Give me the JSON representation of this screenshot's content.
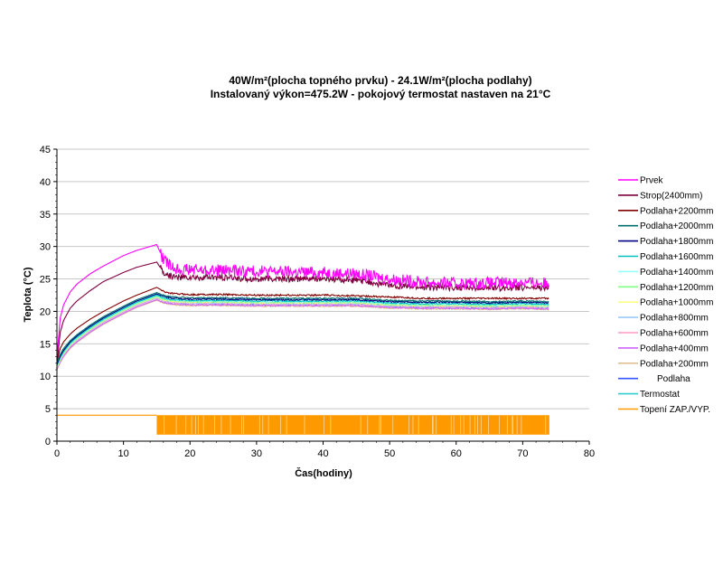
{
  "chart_data": {
    "type": "line",
    "title": "40W/m²(plocha topného prvku) - 24.1W/m²(plocha podlahy)",
    "subtitle": "Instalovaný výkon=475.2W - pokojový termostat nastaven na 21°C",
    "xlabel": "Čas(hodiny)",
    "ylabel": "Teplota (°C)",
    "xlim": [
      0,
      80
    ],
    "ylim": [
      0,
      45
    ],
    "xticks": [
      "0",
      "10",
      "20",
      "30",
      "40",
      "50",
      "60",
      "70",
      "80"
    ],
    "yticks": [
      "0",
      "5",
      "10",
      "15",
      "20",
      "25",
      "30",
      "35",
      "40",
      "45"
    ],
    "grid": "horizontal",
    "legend_position": "right",
    "series": [
      {
        "name": "Prvek",
        "color": "#ff00ff",
        "x": [
          0,
          0.5,
          1,
          2,
          3,
          5,
          7,
          10,
          12,
          15,
          16,
          17,
          18,
          20,
          25,
          30,
          40,
          45,
          50,
          55,
          60,
          65,
          70,
          74
        ],
        "y": [
          13,
          19,
          21,
          23,
          24.2,
          25.8,
          27,
          28.6,
          29.4,
          30.3,
          28,
          27,
          26.6,
          26.4,
          26.3,
          26.2,
          26,
          25.8,
          25,
          24.5,
          24.3,
          24.4,
          24.5,
          24.3
        ],
        "noise": 0.9
      },
      {
        "name": "Strop(2400mm)",
        "color": "#800040",
        "x": [
          0,
          0.5,
          1,
          2,
          3,
          5,
          7,
          10,
          12,
          15,
          16,
          17,
          18,
          20,
          25,
          30,
          40,
          45,
          50,
          55,
          60,
          65,
          70,
          74
        ],
        "y": [
          12,
          16.8,
          18.6,
          20.5,
          21.6,
          23.2,
          24.6,
          26,
          26.8,
          27.6,
          26,
          25.5,
          25.3,
          25.2,
          25.2,
          25,
          25,
          24.8,
          24,
          23.7,
          23.7,
          23.6,
          23.7,
          23.6
        ],
        "noise": 0.5
      },
      {
        "name": "Podlaha+2200mm",
        "color": "#800000",
        "x": [
          0,
          0.5,
          1,
          2,
          3,
          5,
          7,
          10,
          12,
          15,
          16,
          17,
          18,
          20,
          25,
          30,
          40,
          45,
          50,
          55,
          60,
          65,
          70,
          74
        ],
        "y": [
          12.3,
          14.3,
          15.3,
          16.5,
          17.4,
          18.8,
          20,
          21.6,
          22.5,
          23.7,
          23.1,
          22.8,
          22.7,
          22.6,
          22.6,
          22.5,
          22.5,
          22.4,
          22.2,
          22,
          22,
          22,
          22,
          22
        ],
        "noise": 0.12
      },
      {
        "name": "Podlaha+2000mm",
        "color": "#006f6f",
        "x": [
          0,
          0.5,
          1,
          2,
          3,
          5,
          7,
          10,
          12,
          15,
          16,
          17,
          18,
          20,
          25,
          30,
          40,
          45,
          50,
          55,
          60,
          65,
          70,
          74
        ],
        "y": [
          12,
          13.4,
          14.3,
          15.5,
          16.4,
          17.9,
          19.2,
          20.8,
          21.8,
          22.9,
          22.5,
          22.3,
          22.2,
          22.1,
          22.1,
          22,
          22,
          22,
          21.7,
          21.6,
          21.6,
          21.5,
          21.6,
          21.5
        ],
        "noise": 0.1
      },
      {
        "name": "Podlaha+1800mm",
        "color": "#000080",
        "x": [
          0,
          0.5,
          1,
          2,
          3,
          5,
          7,
          10,
          12,
          15,
          16,
          17,
          18,
          20,
          25,
          30,
          40,
          45,
          50,
          55,
          60,
          65,
          70,
          74
        ],
        "y": [
          11.8,
          13.1,
          14,
          15.3,
          16.2,
          17.7,
          19,
          20.6,
          21.6,
          22.7,
          22.3,
          22.1,
          22,
          21.9,
          21.9,
          21.8,
          21.8,
          21.8,
          21.5,
          21.4,
          21.4,
          21.3,
          21.4,
          21.3
        ],
        "noise": 0.1
      },
      {
        "name": "Podlaha+1600mm",
        "color": "#00bfbf",
        "x": [
          0,
          0.5,
          1,
          2,
          3,
          5,
          7,
          10,
          12,
          15,
          16,
          17,
          18,
          20,
          25,
          30,
          40,
          45,
          50,
          55,
          60,
          65,
          70,
          74
        ],
        "y": [
          11.7,
          12.9,
          13.8,
          15.1,
          16,
          17.5,
          18.8,
          20.4,
          21.4,
          22.5,
          22.1,
          21.9,
          21.8,
          21.7,
          21.7,
          21.6,
          21.6,
          21.6,
          21.3,
          21.2,
          21.2,
          21.1,
          21.2,
          21.1
        ],
        "noise": 0.1
      },
      {
        "name": "Podlaha+1400mm",
        "color": "#99ffff",
        "x": [
          0,
          0.5,
          1,
          2,
          3,
          5,
          7,
          10,
          12,
          15,
          16,
          17,
          18,
          20,
          25,
          30,
          40,
          45,
          50,
          55,
          60,
          65,
          70,
          74
        ],
        "y": [
          11.6,
          12.8,
          13.7,
          15,
          15.9,
          17.4,
          18.7,
          20.3,
          21.3,
          22.4,
          22,
          21.8,
          21.7,
          21.6,
          21.6,
          21.5,
          21.5,
          21.5,
          21.2,
          21.1,
          21.1,
          21,
          21.1,
          21
        ],
        "noise": 0.1
      },
      {
        "name": "Podlaha+1200mm",
        "color": "#80ff80",
        "x": [
          0,
          0.5,
          1,
          2,
          3,
          5,
          7,
          10,
          12,
          15,
          16,
          17,
          18,
          20,
          25,
          30,
          40,
          45,
          50,
          55,
          60,
          65,
          70,
          74
        ],
        "y": [
          11.5,
          12.7,
          13.6,
          14.9,
          15.8,
          17.3,
          18.6,
          20.2,
          21.2,
          22.3,
          21.9,
          21.7,
          21.6,
          21.5,
          21.5,
          21.4,
          21.4,
          21.4,
          21.1,
          21,
          21,
          20.9,
          21,
          20.9
        ],
        "noise": 0.1
      },
      {
        "name": "Podlaha+1000mm",
        "color": "#ffff80",
        "x": [
          0,
          0.5,
          1,
          2,
          3,
          5,
          7,
          10,
          12,
          15,
          16,
          17,
          18,
          20,
          25,
          30,
          40,
          45,
          50,
          55,
          60,
          65,
          70,
          74
        ],
        "y": [
          11.4,
          12.6,
          13.5,
          14.8,
          15.7,
          17.2,
          18.5,
          20.1,
          21.1,
          22.2,
          21.8,
          21.6,
          21.5,
          21.4,
          21.4,
          21.3,
          21.3,
          21.3,
          21,
          20.9,
          20.9,
          20.8,
          20.9,
          20.8
        ],
        "noise": 0.1
      },
      {
        "name": "Podlaha+800mm",
        "color": "#99ccff",
        "x": [
          0,
          0.5,
          1,
          2,
          3,
          5,
          7,
          10,
          12,
          15,
          16,
          17,
          18,
          20,
          25,
          30,
          40,
          45,
          50,
          55,
          60,
          65,
          70,
          74
        ],
        "y": [
          11.3,
          12.5,
          13.4,
          14.7,
          15.6,
          17.1,
          18.4,
          20,
          21,
          22.1,
          21.7,
          21.5,
          21.4,
          21.3,
          21.3,
          21.2,
          21.2,
          21.2,
          20.9,
          20.8,
          20.8,
          20.7,
          20.8,
          20.7
        ],
        "noise": 0.1
      },
      {
        "name": "Podlaha+600mm",
        "color": "#ff99cc",
        "x": [
          0,
          0.5,
          1,
          2,
          3,
          5,
          7,
          10,
          12,
          15,
          16,
          17,
          18,
          20,
          25,
          30,
          40,
          45,
          50,
          55,
          60,
          65,
          70,
          74
        ],
        "y": [
          11.2,
          12.4,
          13.3,
          14.6,
          15.5,
          17,
          18.3,
          19.9,
          20.9,
          22,
          21.6,
          21.4,
          21.3,
          21.2,
          21.2,
          21.1,
          21.1,
          21.1,
          20.8,
          20.7,
          20.7,
          20.6,
          20.7,
          20.6
        ],
        "noise": 0.1
      },
      {
        "name": "Podlaha+400mm",
        "color": "#cc66ff",
        "x": [
          0,
          0.5,
          1,
          2,
          3,
          5,
          7,
          10,
          12,
          15,
          16,
          17,
          18,
          20,
          25,
          30,
          40,
          45,
          50,
          55,
          60,
          65,
          70,
          74
        ],
        "y": [
          11.1,
          12.2,
          13.1,
          14.4,
          15.3,
          16.8,
          18.1,
          19.7,
          20.7,
          21.8,
          21.4,
          21.2,
          21.1,
          21,
          21,
          20.9,
          20.9,
          20.9,
          20.6,
          20.5,
          20.5,
          20.4,
          20.5,
          20.4
        ],
        "noise": 0.1
      },
      {
        "name": "Podlaha+200mm",
        "color": "#e0c090",
        "x": [
          0,
          0.5,
          1,
          2,
          3,
          5,
          7,
          10,
          12,
          15,
          16,
          17,
          18,
          20,
          25,
          30,
          40,
          45,
          50,
          55,
          60,
          65,
          70,
          74
        ],
        "y": [
          11,
          12.1,
          13,
          14.3,
          15.2,
          16.7,
          18,
          19.6,
          20.6,
          21.7,
          21.3,
          21.1,
          21,
          20.9,
          20.9,
          20.8,
          20.8,
          20.8,
          20.5,
          20.4,
          20.4,
          20.3,
          20.4,
          20.3
        ],
        "noise": 0.1
      },
      {
        "name": "Podlaha",
        "color": "#3355ff",
        "x": [
          0,
          0.5,
          1,
          2,
          3,
          5,
          7,
          10,
          12,
          15,
          16,
          17,
          18,
          20,
          25,
          30,
          40,
          45,
          50,
          55,
          60,
          65,
          70,
          74
        ],
        "y": [
          11.2,
          12.5,
          13.4,
          14.7,
          15.6,
          17.1,
          18.4,
          20,
          21,
          22.1,
          21.6,
          21.4,
          21.3,
          21.2,
          21.2,
          21.1,
          21.1,
          21.1,
          20.8,
          20.7,
          20.7,
          20.6,
          20.7,
          20.6
        ],
        "noise": 0.1
      },
      {
        "name": "Termostat",
        "color": "#33cccc",
        "x": [
          0,
          0.5,
          1,
          2,
          3,
          5,
          7,
          10,
          12,
          15,
          16,
          17,
          18,
          20,
          25,
          30,
          40,
          45,
          50,
          55,
          60,
          65,
          70,
          74
        ],
        "y": [
          11.5,
          12.9,
          13.8,
          15.1,
          16,
          17.5,
          18.8,
          20.4,
          21.4,
          22.6,
          22,
          21.7,
          21.5,
          21.4,
          21.3,
          21.2,
          21.2,
          21.2,
          20.9,
          20.8,
          20.8,
          20.7,
          20.8,
          20.7
        ],
        "noise": 0.1
      },
      {
        "name": "Topení ZAP./VYP.",
        "color": "#ff9900",
        "type": "on-off",
        "on_value": 4,
        "off_value": 1,
        "on_until": 15,
        "cycling_from": 15,
        "cycling_to": 74
      }
    ]
  }
}
